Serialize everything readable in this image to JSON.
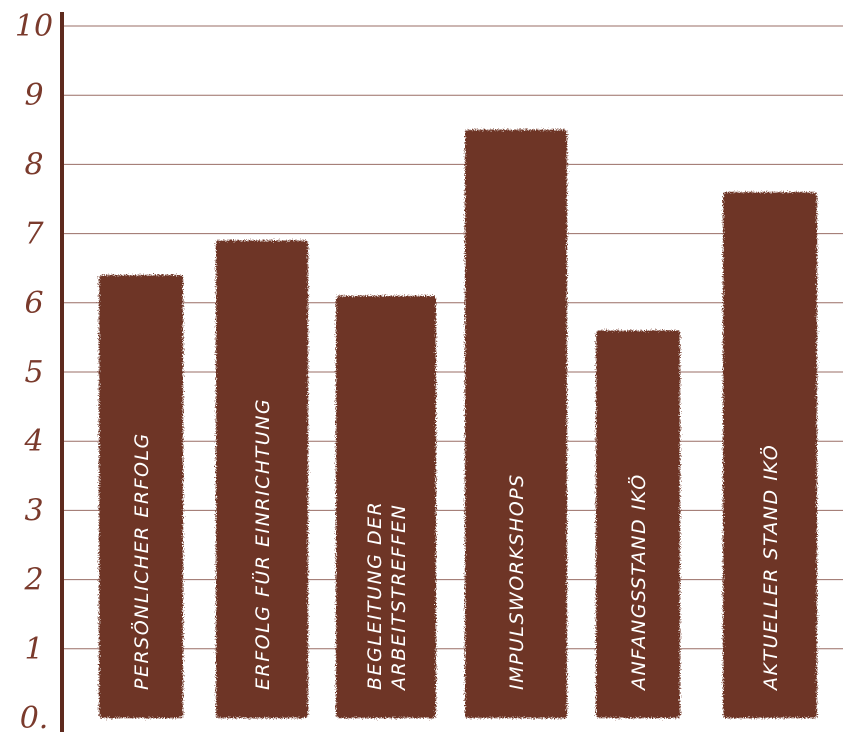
{
  "chart_data": {
    "type": "bar",
    "categories": [
      [
        "PERSÖNLICHER ERFOLG"
      ],
      [
        "ERFOLG FÜR EINRICHTUNG"
      ],
      [
        "BEGLEITUNG DER",
        "ARBEITSTREFFEN"
      ],
      [
        "IMPULSWORKSHOPS"
      ],
      [
        "ANFANGSSTAND IKÖ"
      ],
      [
        "AKTUELLER STAND IKÖ"
      ]
    ],
    "values": [
      6.4,
      6.9,
      6.1,
      8.5,
      5.6,
      7.6
    ],
    "ylim": [
      0,
      10
    ],
    "yticks": [
      "0.",
      "1",
      "2",
      "3",
      "4",
      "5",
      "6",
      "7",
      "8",
      "9",
      "10"
    ],
    "title": "",
    "xlabel": "",
    "ylabel": "",
    "grid": true,
    "legend": "none",
    "colors": {
      "bar": "#6e3426",
      "grid": "#9a6e66",
      "axis": "#5e2a1e",
      "tick_text": "#7a3a2c",
      "label_text": "#ffffff"
    }
  }
}
